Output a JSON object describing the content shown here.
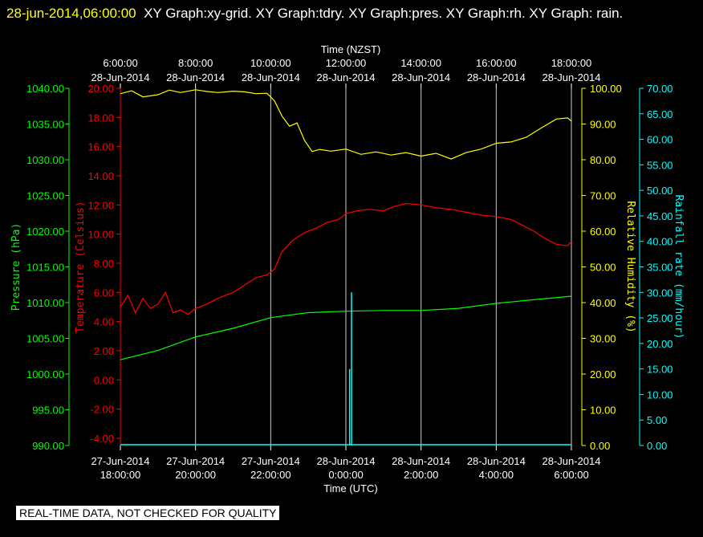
{
  "header": {
    "datetime": "28-jun-2014,06:00:00",
    "titles": "XY Graph:xy-grid.  XY Graph:tdry.  XY Graph:pres.  XY Graph:rh.  XY Graph: rain."
  },
  "footer": {
    "notice": "REAL-TIME DATA, NOT CHECKED FOR QUALITY"
  },
  "colors": {
    "temperature": "#ff0000",
    "pressure": "#00ff00",
    "humidity": "#ffff00",
    "rain": "#00ffff",
    "grid": "#ffffff"
  },
  "chart_data": {
    "type": "line",
    "title": "",
    "top_axis": {
      "label": "Time (NZST)",
      "ticks": [
        {
          "time": "6:00:00",
          "date": "28-Jun-2014"
        },
        {
          "time": "8:00:00",
          "date": "28-Jun-2014"
        },
        {
          "time": "10:00:00",
          "date": "28-Jun-2014"
        },
        {
          "time": "12:00:00",
          "date": "28-Jun-2014"
        },
        {
          "time": "14:00:00",
          "date": "28-Jun-2014"
        },
        {
          "time": "16:00:00",
          "date": "28-Jun-2014"
        },
        {
          "time": "18:00:00",
          "date": "28-Jun-2014"
        }
      ]
    },
    "bottom_axis": {
      "label": "Time (UTC)",
      "ticks": [
        {
          "date": "27-Jun-2014",
          "time": "18:00:00"
        },
        {
          "date": "27-Jun-2014",
          "time": "20:00:00"
        },
        {
          "date": "27-Jun-2014",
          "time": "22:00:00"
        },
        {
          "date": "28-Jun-2014",
          "time": "0:00:00"
        },
        {
          "date": "28-Jun-2014",
          "time": "2:00:00"
        },
        {
          "date": "28-Jun-2014",
          "time": "4:00:00"
        },
        {
          "date": "28-Jun-2014",
          "time": "6:00:00"
        }
      ]
    },
    "x_range_hours_nzst": [
      6,
      18
    ],
    "grid": true,
    "axes": {
      "pressure": {
        "label": "Pressure (hPa)",
        "min": 990,
        "max": 1040,
        "ticks": [
          "1040.00",
          "1035.00",
          "1030.00",
          "1025.00",
          "1020.00",
          "1015.00",
          "1010.00",
          "1005.00",
          "1000.00",
          "995.00",
          "990.00"
        ]
      },
      "temperature": {
        "label": "Temperature (Celsius)",
        "min": -4.5,
        "max": 20,
        "ticks": [
          "20.00",
          "18.00",
          "16.00",
          "14.00",
          "12.00",
          "10.00",
          "8.00",
          "6.00",
          "4.00",
          "2.00",
          "0.00",
          "-2.00",
          "-4.00"
        ]
      },
      "humidity": {
        "label": "Relative Humidity (%)",
        "min": 0,
        "max": 100,
        "ticks": [
          "100.00",
          "90.00",
          "80.00",
          "70.00",
          "60.00",
          "50.00",
          "40.00",
          "30.00",
          "20.00",
          "10.00",
          "0.00"
        ]
      },
      "rain": {
        "label": "Rainfall rate (mm/hour)",
        "min": 0,
        "max": 70,
        "ticks": [
          "70.00",
          "65.00",
          "60.00",
          "55.00",
          "50.00",
          "45.00",
          "40.00",
          "35.00",
          "30.00",
          "25.00",
          "20.00",
          "15.00",
          "10.00",
          "5.00",
          "0.00"
        ]
      }
    },
    "series": [
      {
        "name": "tdry",
        "axis": "temperature",
        "x": [
          6.0,
          6.2,
          6.4,
          6.6,
          6.8,
          7.0,
          7.2,
          7.4,
          7.6,
          7.8,
          8.0,
          8.3,
          8.6,
          9.0,
          9.3,
          9.6,
          9.9,
          10.1,
          10.3,
          10.6,
          10.9,
          11.2,
          11.5,
          11.8,
          12.0,
          12.3,
          12.6,
          13.0,
          13.3,
          13.6,
          14.0,
          14.4,
          14.8,
          15.2,
          15.6,
          16.0,
          16.4,
          16.7,
          17.0,
          17.3,
          17.6,
          17.9,
          18.0
        ],
        "y": [
          5.0,
          5.8,
          4.6,
          5.6,
          4.9,
          5.2,
          6.0,
          4.6,
          4.8,
          4.5,
          4.9,
          5.2,
          5.6,
          6.0,
          6.5,
          7.0,
          7.2,
          7.6,
          8.8,
          9.6,
          10.1,
          10.4,
          10.8,
          11.0,
          11.4,
          11.6,
          11.7,
          11.6,
          11.9,
          12.1,
          12.0,
          11.8,
          11.7,
          11.5,
          11.3,
          11.2,
          11.0,
          10.6,
          10.2,
          9.7,
          9.3,
          9.2,
          9.5
        ]
      },
      {
        "name": "pres",
        "axis": "pressure",
        "x": [
          6.0,
          7.0,
          8.0,
          9.0,
          10.0,
          11.0,
          12.0,
          13.0,
          14.0,
          15.0,
          16.0,
          17.0,
          18.0
        ],
        "y": [
          1002.0,
          1003.3,
          1005.2,
          1006.4,
          1007.9,
          1008.6,
          1008.8,
          1008.9,
          1008.9,
          1009.2,
          1009.9,
          1010.4,
          1010.9
        ]
      },
      {
        "name": "rh",
        "axis": "humidity",
        "x": [
          6.0,
          6.3,
          6.6,
          7.0,
          7.3,
          7.6,
          8.0,
          8.3,
          8.6,
          9.0,
          9.3,
          9.6,
          9.9,
          10.1,
          10.3,
          10.5,
          10.7,
          10.9,
          11.1,
          11.3,
          11.6,
          12.0,
          12.4,
          12.8,
          13.2,
          13.6,
          14.0,
          14.4,
          14.8,
          15.2,
          15.6,
          16.0,
          16.4,
          16.8,
          17.2,
          17.6,
          17.9,
          18.0
        ],
        "y": [
          98.5,
          99.3,
          97.6,
          98.2,
          99.5,
          98.8,
          99.6,
          99.1,
          98.8,
          99.2,
          99.0,
          98.5,
          98.6,
          96.5,
          92.2,
          89.4,
          90.3,
          85.4,
          82.3,
          82.9,
          82.4,
          83.0,
          81.5,
          82.2,
          81.3,
          82.0,
          81.0,
          81.8,
          80.2,
          82.0,
          83.0,
          84.6,
          85.0,
          86.3,
          88.9,
          91.4,
          91.7,
          90.8
        ]
      },
      {
        "name": "rain",
        "axis": "rain",
        "x": [
          6.0,
          12.1,
          12.15,
          12.2,
          18.0
        ],
        "y": [
          0.0,
          15.0,
          30.0,
          0.0,
          0.0
        ]
      }
    ]
  }
}
